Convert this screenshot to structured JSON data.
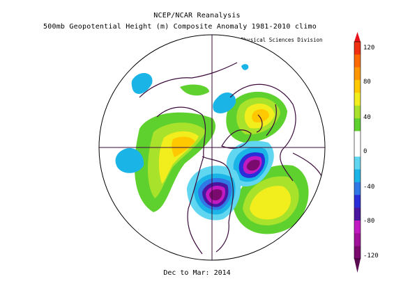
{
  "header": {
    "line1": "NCEP/NCAR Reanalysis",
    "line2": "500mb Geopotential Height (m) Composite Anomaly 1981-2010 climo",
    "credit": "NOAA/ESRL Physical Sciences Division"
  },
  "footer": {
    "date": "Dec to Mar: 2014"
  },
  "colorbar": {
    "labels": [
      "120",
      "80",
      "40",
      "0",
      "-40",
      "-80",
      "-120"
    ],
    "colors": [
      "#7a0a6e",
      "#a0109a",
      "#c21ac2",
      "#4a16a0",
      "#2a2ed8",
      "#2f78e6",
      "#1ab4e6",
      "#60d6f0",
      "#ffffff",
      "#ffffff",
      "#5fd12f",
      "#a8e22a",
      "#f2ee1e",
      "#ffc800",
      "#ff9600",
      "#ff6a00",
      "#f03010"
    ]
  },
  "map": {
    "projection": "north polar stereographic",
    "features": {
      "ridge_west_coast": "positive anomaly over NE Pacific / Alaska",
      "trough_eastern_na": "negative anomaly over central/eastern North America",
      "trough_north_atlantic": "negative anomaly near Greenland/Iceland",
      "ridge_atlantic": "positive anomaly over central North Atlantic",
      "ridge_eurasia": "positive anomaly over northern Eurasia"
    }
  }
}
